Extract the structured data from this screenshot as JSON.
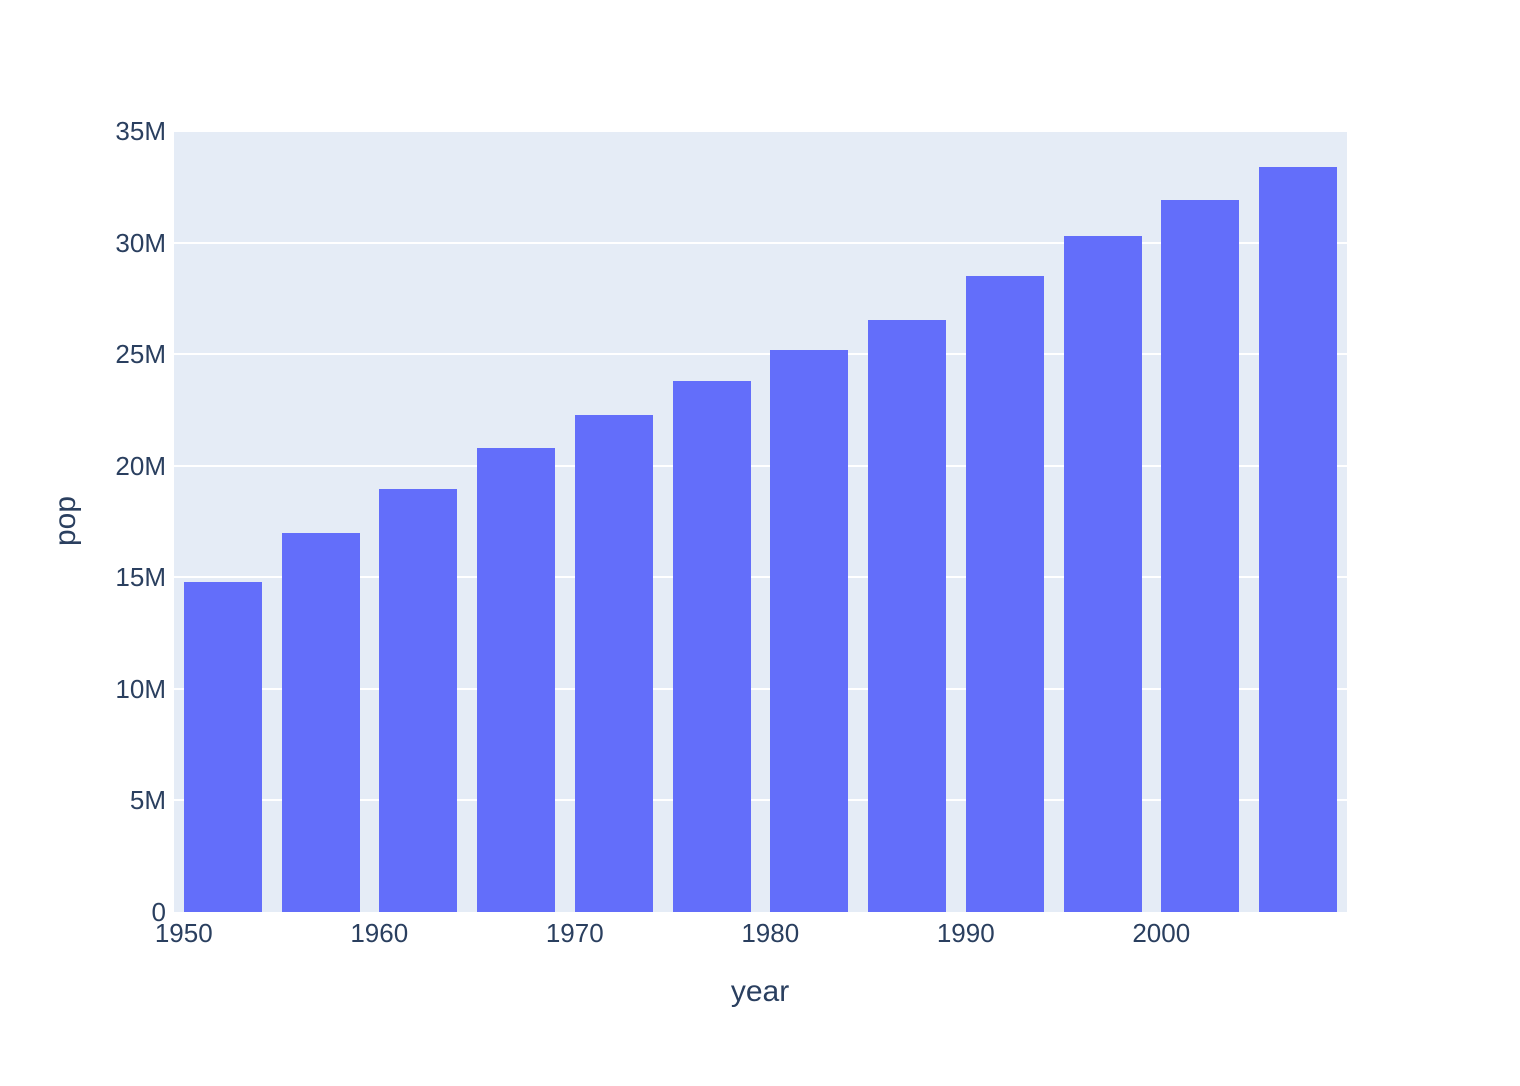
{
  "chart_data": {
    "type": "bar",
    "title": "",
    "xlabel": "year",
    "ylabel": "pop",
    "x": [
      1952,
      1957,
      1962,
      1967,
      1972,
      1977,
      1982,
      1987,
      1992,
      1997,
      2002,
      2007
    ],
    "values": [
      14785584,
      17010154,
      18985849,
      20819767,
      22284500,
      23796400,
      25201900,
      26549700,
      28523502,
      30305843,
      31902268,
      33390141
    ],
    "bar_width_in_x_units": 4,
    "xlim": [
      1949.5,
      2009.5
    ],
    "ylim": [
      0,
      35060000
    ],
    "x_ticks": [
      {
        "value": 1950,
        "label": "1950"
      },
      {
        "value": 1960,
        "label": "1960"
      },
      {
        "value": 1970,
        "label": "1970"
      },
      {
        "value": 1980,
        "label": "1980"
      },
      {
        "value": 1990,
        "label": "1990"
      },
      {
        "value": 2000,
        "label": "2000"
      }
    ],
    "y_ticks": [
      {
        "value": 0,
        "label": "0"
      },
      {
        "value": 5000000,
        "label": "5M"
      },
      {
        "value": 10000000,
        "label": "10M"
      },
      {
        "value": 15000000,
        "label": "15M"
      },
      {
        "value": 20000000,
        "label": "20M"
      },
      {
        "value": 25000000,
        "label": "25M"
      },
      {
        "value": 30000000,
        "label": "30M"
      },
      {
        "value": 35000000,
        "label": "35M"
      }
    ],
    "grid": true,
    "legend_position": "none",
    "colors": {
      "bar": "#636EFA",
      "plot_background": "#E5ECF6",
      "gridline": "#FFFFFF",
      "text": "#2A3F5F",
      "page_background": "#FFFFFF"
    }
  }
}
